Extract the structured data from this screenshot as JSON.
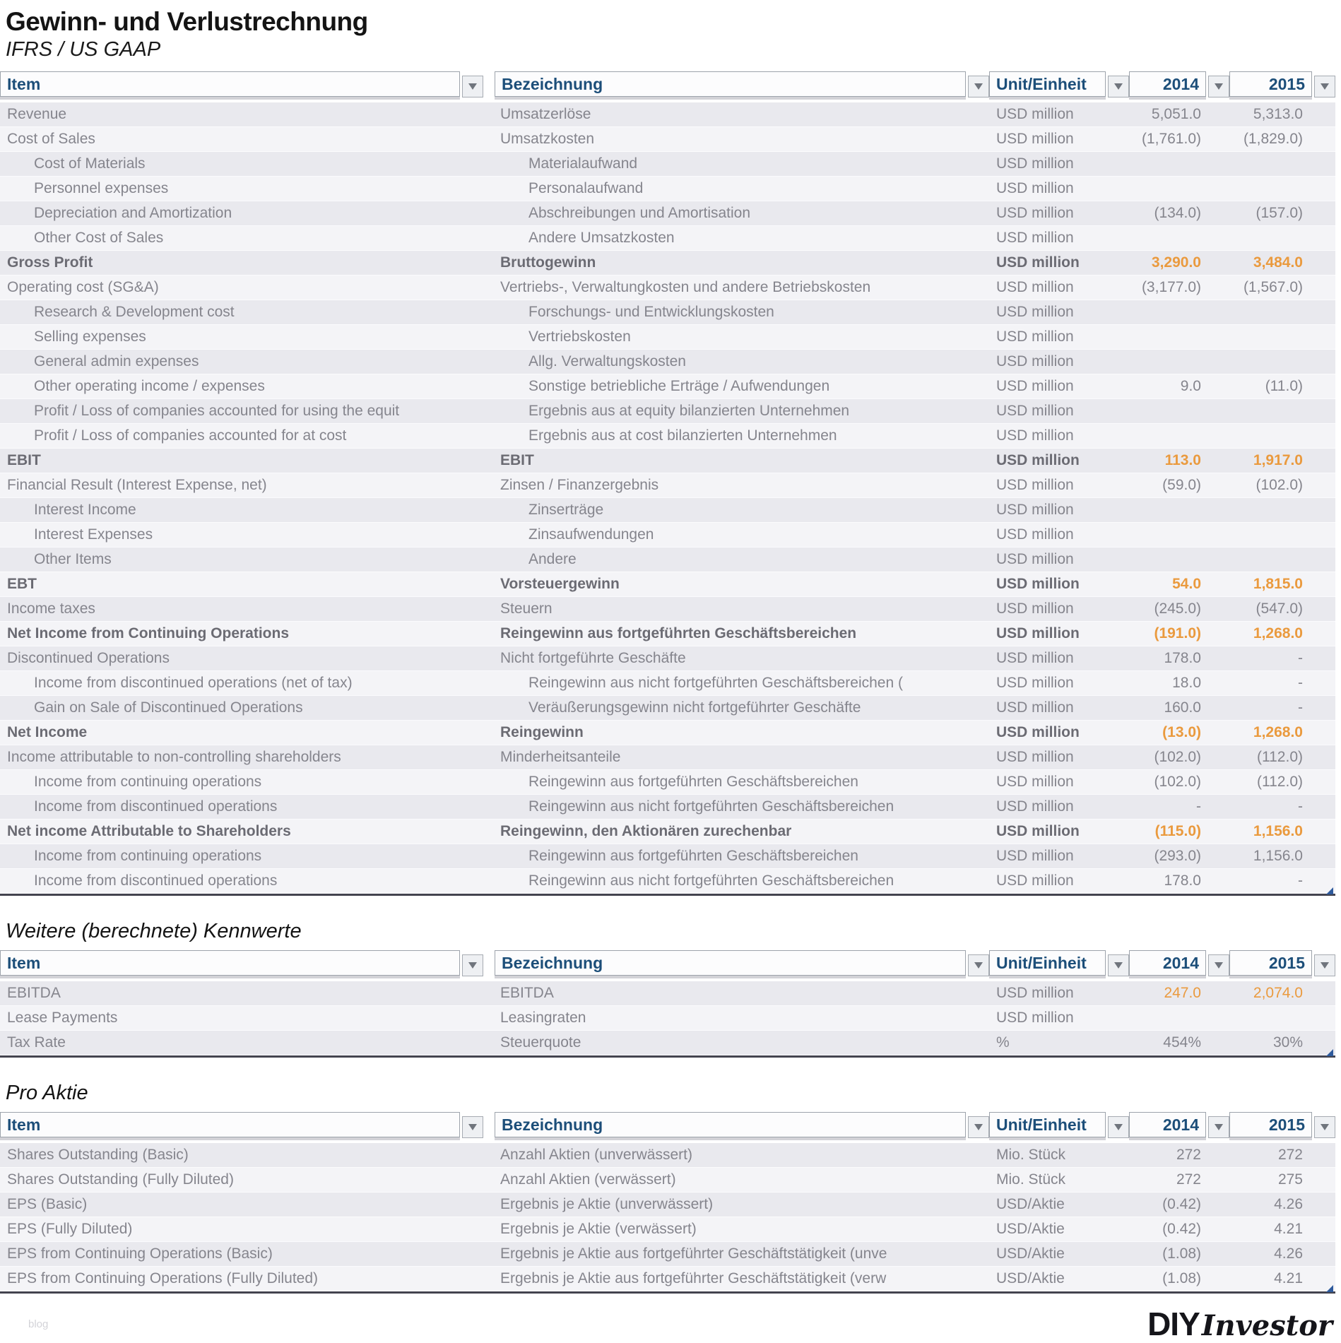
{
  "page": {
    "title": "Gewinn- und Verlustrechnung",
    "subtitle": "IFRS / US GAAP"
  },
  "columns": {
    "item": "Item",
    "bezeichnung": "Bezeichnung",
    "unit": "Unit/Einheit",
    "y2014": "2014",
    "y2015": "2015"
  },
  "colors": {
    "accent_orange": "#ea9a3e",
    "header_blue": "#1c4e79",
    "comment_red": "#e0362c",
    "handle_blue": "#2e5a9c",
    "stripe_dark": "#e9e9ee",
    "stripe_light": "#f4f4f7"
  },
  "sections": [
    {
      "heading": "",
      "rows": [
        {
          "item": "Revenue",
          "bez": "Umsatzerlöse",
          "unit": "USD million",
          "v2014": "5,051.0",
          "v2015": "5,313.0",
          "style": "normal",
          "indent": false
        },
        {
          "item": "Cost of Sales",
          "bez": "Umsatzkosten",
          "unit": "USD million",
          "v2014": "(1,761.0)",
          "v2015": "(1,829.0)",
          "style": "normal",
          "indent": false
        },
        {
          "item": "Cost of Materials",
          "bez": "Materialaufwand",
          "unit": "USD million",
          "v2014": "",
          "v2015": "",
          "style": "normal",
          "indent": true
        },
        {
          "item": "Personnel expenses",
          "bez": "Personalaufwand",
          "unit": "USD million",
          "v2014": "",
          "v2015": "",
          "style": "normal",
          "indent": true
        },
        {
          "item": "Depreciation and Amortization",
          "bez": "Abschreibungen und Amortisation",
          "unit": "USD million",
          "v2014": "(134.0)",
          "v2015": "(157.0)",
          "style": "normal",
          "indent": true
        },
        {
          "item": "Other Cost of Sales",
          "bez": "Andere Umsatzkosten",
          "unit": "USD million",
          "v2014": "",
          "v2015": "",
          "style": "normal",
          "indent": true
        },
        {
          "item": "Gross Profit",
          "bez": "Bruttogewinn",
          "unit": "USD million",
          "v2014": "3,290.0",
          "v2015": "3,484.0",
          "style": "bold",
          "indent": false
        },
        {
          "item": "Operating cost (SG&A)",
          "bez": "Vertriebs-, Verwaltungkosten und andere Betriebskosten",
          "unit": "USD million",
          "v2014": "(3,177.0)",
          "v2015": "(1,567.0)",
          "style": "normal",
          "indent": false
        },
        {
          "item": "Research & Development cost",
          "bez": "Forschungs- und Entwicklungskosten",
          "unit": "USD million",
          "v2014": "",
          "v2015": "",
          "style": "normal",
          "indent": true
        },
        {
          "item": "Selling expenses",
          "bez": "Vertriebskosten",
          "unit": "USD million",
          "v2014": "",
          "v2015": "",
          "style": "normal",
          "indent": true
        },
        {
          "item": "General admin expenses",
          "bez": "Allg. Verwaltungskosten",
          "unit": "USD million",
          "v2014": "",
          "v2015": "",
          "style": "normal",
          "indent": true
        },
        {
          "item": "Other operating income / expenses",
          "bez": "Sonstige betriebliche Erträge / Aufwendungen",
          "unit": "USD million",
          "v2014": "9.0",
          "v2015": "(11.0)",
          "style": "normal",
          "indent": true
        },
        {
          "item": "Profit / Loss of companies accounted for using the equit",
          "bez": "Ergebnis aus at equity bilanzierten Unternehmen",
          "unit": "USD million",
          "v2014": "",
          "v2015": "",
          "style": "normal",
          "indent": true
        },
        {
          "item": "Profit / Loss of companies accounted for at cost",
          "bez": "Ergebnis aus at cost bilanzierten Unternehmen",
          "unit": "USD million",
          "v2014": "",
          "v2015": "",
          "style": "normal",
          "indent": true
        },
        {
          "item": "EBIT",
          "bez": "EBIT",
          "unit": "USD million",
          "v2014": "113.0",
          "v2015": "1,917.0",
          "style": "bold",
          "indent": false
        },
        {
          "item": "Financial Result (Interest Expense, net)",
          "bez": "Zinsen / Finanzergebnis",
          "unit": "USD million",
          "v2014": "(59.0)",
          "v2015": "(102.0)",
          "style": "normal",
          "indent": false
        },
        {
          "item": "Interest Income",
          "bez": "Zinserträge",
          "unit": "USD million",
          "v2014": "",
          "v2015": "",
          "style": "normal",
          "indent": true
        },
        {
          "item": "Interest Expenses",
          "bez": "Zinsaufwendungen",
          "unit": "USD million",
          "v2014": "",
          "v2015": "",
          "style": "normal",
          "indent": true
        },
        {
          "item": "Other Items",
          "bez": "Andere",
          "unit": "USD million",
          "v2014": "",
          "v2015": "",
          "style": "normal",
          "indent": true
        },
        {
          "item": "EBT",
          "bez": "Vorsteuergewinn",
          "unit": "USD million",
          "v2014": "54.0",
          "v2015": "1,815.0",
          "style": "bold",
          "indent": false
        },
        {
          "item": "Income taxes",
          "bez": "Steuern",
          "unit": "USD million",
          "v2014": "(245.0)",
          "v2015": "(547.0)",
          "style": "normal",
          "indent": false
        },
        {
          "item": "Net Income from Continuing Operations",
          "bez": "Reingewinn aus fortgeführten Geschäftsbereichen",
          "unit": "USD million",
          "v2014": "(191.0)",
          "v2015": "1,268.0",
          "style": "bold",
          "indent": false
        },
        {
          "item": "Discontinued Operations",
          "bez": "Nicht fortgeführte Geschäfte",
          "unit": "USD million",
          "v2014": "178.0",
          "v2015": "-",
          "style": "normal",
          "indent": false
        },
        {
          "item": "Income from discontinued operations (net of tax)",
          "bez": "Reingewinn aus nicht fortgeführten Geschäftsbereichen (",
          "unit": "USD million",
          "v2014": "18.0",
          "v2015": "-",
          "style": "normal",
          "indent": true
        },
        {
          "item": "Gain on Sale of Discontinued Operations",
          "bez": "Veräußerungsgewinn nicht fortgeführter Geschäfte",
          "unit": "USD million",
          "v2014": "160.0",
          "v2015": "-",
          "style": "normal",
          "indent": true
        },
        {
          "item": "Net Income",
          "bez": "Reingewinn",
          "unit": "USD million",
          "v2014": "(13.0)",
          "v2015": "1,268.0",
          "style": "bold",
          "indent": false
        },
        {
          "item": "Income attributable to non-controlling shareholders",
          "bez": "Minderheitsanteile",
          "unit": "USD million",
          "v2014": "(102.0)",
          "v2015": "(112.0)",
          "style": "normal",
          "indent": false,
          "comment": true
        },
        {
          "item": "Income from continuing operations",
          "bez": "Reingewinn aus fortgeführten Geschäftsbereichen",
          "unit": "USD million",
          "v2014": "(102.0)",
          "v2015": "(112.0)",
          "style": "normal",
          "indent": true
        },
        {
          "item": "Income from discontinued operations",
          "bez": "Reingewinn aus nicht fortgeführten Geschäftsbereichen",
          "unit": "USD million",
          "v2014": "-",
          "v2015": "-",
          "style": "normal",
          "indent": true
        },
        {
          "item": "Net income Attributable to Shareholders",
          "bez": "Reingewinn, den Aktionären zurechenbar",
          "unit": "USD million",
          "v2014": "(115.0)",
          "v2015": "1,156.0",
          "style": "bold",
          "indent": false
        },
        {
          "item": "Income from continuing operations",
          "bez": "Reingewinn aus fortgeführten Geschäftsbereichen",
          "unit": "USD million",
          "v2014": "(293.0)",
          "v2015": "1,156.0",
          "style": "normal",
          "indent": true
        },
        {
          "item": "Income from discontinued operations",
          "bez": "Reingewinn aus nicht fortgeführten Geschäftsbereichen",
          "unit": "USD million",
          "v2014": "178.0",
          "v2015": "-",
          "style": "normal",
          "indent": true
        }
      ]
    },
    {
      "heading": "Weitere (berechnete) Kennwerte",
      "rows": [
        {
          "item": "EBITDA",
          "bez": "EBITDA",
          "unit": "USD million",
          "v2014": "247.0",
          "v2015": "2,074.0",
          "style": "accent",
          "indent": false
        },
        {
          "item": "Lease Payments",
          "bez": "Leasingraten",
          "unit": "USD million",
          "v2014": "",
          "v2015": "",
          "style": "normal",
          "indent": false
        },
        {
          "item": "Tax Rate",
          "bez": "Steuerquote",
          "unit": "%",
          "v2014": "454%",
          "v2015": "30%",
          "style": "normal",
          "indent": false
        }
      ]
    },
    {
      "heading": "Pro Aktie",
      "rows": [
        {
          "item": "Shares Outstanding (Basic)",
          "bez": "Anzahl Aktien (unverwässert)",
          "unit": "Mio. Stück",
          "v2014": "272",
          "v2015": "272",
          "style": "normal",
          "indent": false
        },
        {
          "item": "Shares Outstanding (Fully Diluted)",
          "bez": "Anzahl Aktien (verwässert)",
          "unit": "Mio. Stück",
          "v2014": "272",
          "v2015": "275",
          "style": "normal",
          "indent": false
        },
        {
          "item": "EPS (Basic)",
          "bez": "Ergebnis je Aktie (unverwässert)",
          "unit": "USD/Aktie",
          "v2014": "(0.42)",
          "v2015": "4.26",
          "style": "normal",
          "indent": false
        },
        {
          "item": "EPS (Fully Diluted)",
          "bez": "Ergebnis je Aktie (verwässert)",
          "unit": "USD/Aktie",
          "v2014": "(0.42)",
          "v2015": "4.21",
          "style": "normal",
          "indent": false
        },
        {
          "item": "EPS from Continuing Operations (Basic)",
          "bez": "Ergebnis je Aktie aus fortgeführter Geschäftstätigkeit (unve",
          "unit": "USD/Aktie",
          "v2014": "(1.08)",
          "v2015": "4.26",
          "style": "normal",
          "indent": false
        },
        {
          "item": "EPS from Continuing Operations (Fully Diluted)",
          "bez": "Ergebnis je Aktie aus fortgeführter Geschäftstätigkeit (verw",
          "unit": "USD/Aktie",
          "v2014": "(1.08)",
          "v2015": "4.21",
          "style": "normal",
          "indent": false
        }
      ]
    }
  ],
  "footer": {
    "watermark": "blog",
    "logo_bold": "DIY",
    "logo_script": "Investor"
  }
}
